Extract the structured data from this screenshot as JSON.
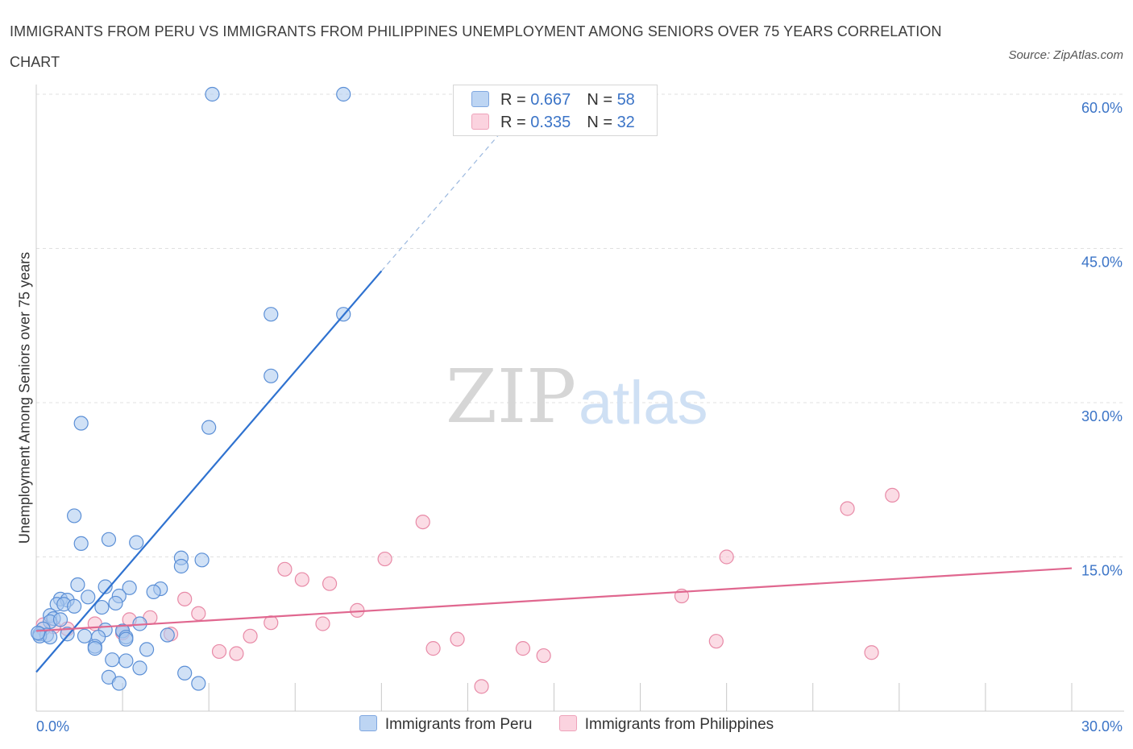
{
  "title": "IMMIGRANTS FROM PERU VS IMMIGRANTS FROM PHILIPPINES UNEMPLOYMENT AMONG SENIORS OVER 75 YEARS CORRELATION CHART",
  "source": "Source: ZipAtlas.com",
  "watermark": {
    "zip": "ZIP",
    "atlas": "atlas"
  },
  "legend_top": {
    "rows": [
      {
        "r_label": "R = ",
        "r_value": "0.667",
        "n_label": "N = ",
        "n_value": "58"
      },
      {
        "r_label": "R = ",
        "r_value": "0.335",
        "n_label": "N = ",
        "n_value": "32"
      }
    ]
  },
  "legend_bottom": {
    "items": [
      {
        "label": "Immigrants from Peru"
      },
      {
        "label": "Immigrants from Philippines"
      }
    ]
  },
  "colors": {
    "peru_fill": "#a9c8ee",
    "peru_stroke": "#5b8fd6",
    "peru_line": "#2f72d0",
    "phil_fill": "#f7bfd0",
    "phil_stroke": "#e88aa7",
    "phil_line": "#e0678f",
    "grid": "#e0e0e0",
    "axis": "#cccccc",
    "tick_text": "#3b74c7"
  },
  "chart_data": {
    "type": "scatter",
    "title": "IMMIGRANTS FROM PERU VS IMMIGRANTS FROM PHILIPPINES UNEMPLOYMENT AMONG SENIORS OVER 75 YEARS CORRELATION CHART",
    "xlabel": "",
    "ylabel": "Unemployment Among Seniors over 75 years",
    "xlim": [
      0,
      30
    ],
    "ylim": [
      0,
      60
    ],
    "x_tick_labels": [
      {
        "value": 0,
        "label": "0.0%"
      },
      {
        "value": 30,
        "label": "30.0%"
      }
    ],
    "y_tick_labels": [
      {
        "value": 15,
        "label": "15.0%"
      },
      {
        "value": 30,
        "label": "30.0%"
      },
      {
        "value": 45,
        "label": "45.0%"
      },
      {
        "value": 60,
        "label": "60.0%"
      }
    ],
    "series": [
      {
        "name": "Immigrants from Peru",
        "R": 0.667,
        "N": 58,
        "trend": {
          "x0": 0,
          "y0": 3.8,
          "x1": 10,
          "y1": 42.8,
          "dashed_to_x": 14.5
        },
        "points": [
          [
            5.1,
            60.0
          ],
          [
            8.9,
            60.0
          ],
          [
            6.8,
            38.6
          ],
          [
            8.9,
            38.6
          ],
          [
            6.8,
            32.6
          ],
          [
            5.0,
            27.6
          ],
          [
            1.3,
            28.0
          ],
          [
            1.1,
            19.0
          ],
          [
            1.3,
            16.3
          ],
          [
            2.1,
            16.7
          ],
          [
            2.9,
            16.4
          ],
          [
            4.2,
            14.9
          ],
          [
            4.8,
            14.7
          ],
          [
            4.2,
            14.1
          ],
          [
            1.2,
            12.3
          ],
          [
            2.0,
            12.1
          ],
          [
            2.7,
            12.0
          ],
          [
            3.6,
            11.9
          ],
          [
            3.4,
            11.6
          ],
          [
            2.4,
            11.2
          ],
          [
            1.5,
            11.1
          ],
          [
            0.7,
            10.9
          ],
          [
            0.9,
            10.8
          ],
          [
            2.3,
            10.5
          ],
          [
            0.6,
            10.4
          ],
          [
            0.8,
            10.4
          ],
          [
            1.1,
            10.2
          ],
          [
            1.9,
            10.1
          ],
          [
            0.4,
            9.3
          ],
          [
            0.5,
            9.0
          ],
          [
            0.4,
            8.7
          ],
          [
            3.0,
            8.5
          ],
          [
            0.2,
            8.0
          ],
          [
            2.5,
            7.8
          ],
          [
            2.5,
            7.8
          ],
          [
            2.0,
            7.9
          ],
          [
            0.9,
            7.5
          ],
          [
            0.1,
            7.5
          ],
          [
            0.3,
            7.4
          ],
          [
            0.1,
            7.3
          ],
          [
            0.4,
            7.2
          ],
          [
            1.4,
            7.3
          ],
          [
            1.8,
            7.2
          ],
          [
            2.6,
            7.2
          ],
          [
            3.8,
            7.4
          ],
          [
            2.6,
            7.0
          ],
          [
            1.7,
            6.3
          ],
          [
            1.7,
            6.1
          ],
          [
            3.2,
            6.0
          ],
          [
            2.2,
            5.0
          ],
          [
            2.6,
            4.9
          ],
          [
            3.0,
            4.2
          ],
          [
            4.3,
            3.7
          ],
          [
            2.1,
            3.3
          ],
          [
            2.4,
            2.7
          ],
          [
            4.7,
            2.7
          ],
          [
            0.05,
            7.6
          ],
          [
            0.7,
            8.9
          ]
        ]
      },
      {
        "name": "Immigrants from Philippines",
        "R": 0.335,
        "N": 32,
        "trend": {
          "x0": 0,
          "y0": 7.8,
          "x1": 30,
          "y1": 13.9
        },
        "points": [
          [
            24.8,
            21.0
          ],
          [
            23.5,
            19.7
          ],
          [
            11.2,
            18.4
          ],
          [
            10.1,
            14.8
          ],
          [
            20.0,
            15.0
          ],
          [
            7.2,
            13.8
          ],
          [
            7.7,
            12.8
          ],
          [
            8.5,
            12.4
          ],
          [
            18.7,
            11.2
          ],
          [
            4.3,
            10.9
          ],
          [
            9.3,
            9.8
          ],
          [
            4.7,
            9.5
          ],
          [
            3.3,
            9.1
          ],
          [
            2.7,
            8.9
          ],
          [
            6.8,
            8.6
          ],
          [
            8.3,
            8.5
          ],
          [
            1.7,
            8.5
          ],
          [
            0.5,
            8.2
          ],
          [
            0.9,
            8.0
          ],
          [
            2.5,
            7.6
          ],
          [
            3.9,
            7.5
          ],
          [
            6.2,
            7.3
          ],
          [
            12.2,
            7.0
          ],
          [
            19.7,
            6.8
          ],
          [
            5.3,
            5.8
          ],
          [
            5.8,
            5.6
          ],
          [
            11.5,
            6.1
          ],
          [
            14.1,
            6.1
          ],
          [
            14.7,
            5.4
          ],
          [
            24.2,
            5.7
          ],
          [
            12.9,
            2.4
          ],
          [
            0.2,
            8.4
          ]
        ]
      }
    ]
  }
}
